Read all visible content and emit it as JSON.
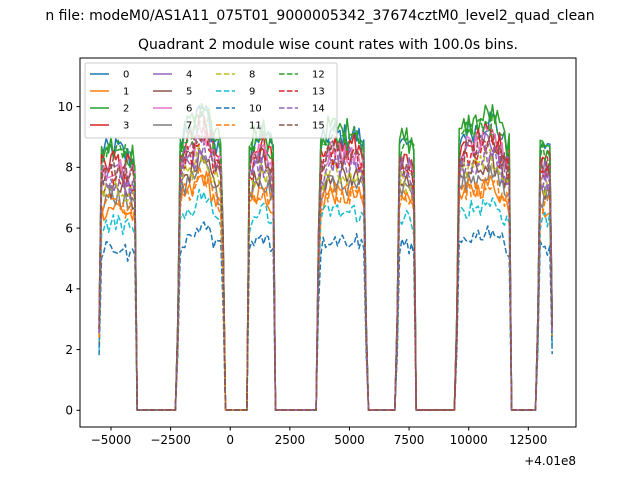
{
  "chart_data": {
    "type": "line",
    "suptitle": "n file: modeM0/AS1A11_075T01_9000005342_37674cztM0_level2_quad_clean",
    "title": "Quadrant 2 module wise count rates with 100.0s bins.",
    "xlabel": "",
    "ylabel": "",
    "x_offset_label": "+4.01e8",
    "xlim": [
      -6300,
      14500
    ],
    "ylim": [
      -0.55,
      11.6
    ],
    "x_ticks": [
      -5000,
      -2500,
      0,
      2500,
      5000,
      7500,
      10000,
      12500
    ],
    "x_tick_labels": [
      "−5000",
      "−2500",
      "0",
      "2500",
      "5000",
      "7500",
      "10000",
      "12500"
    ],
    "y_ticks": [
      0,
      2,
      4,
      6,
      8,
      10
    ],
    "y_tick_labels": [
      "0",
      "2",
      "4",
      "6",
      "8",
      "10"
    ],
    "grid": false,
    "legend_placement": "top-left",
    "legend_columns": 4,
    "bin_size_s": 100,
    "on_segments": [
      [
        -5500,
        -3950
      ],
      [
        -2200,
        -280
      ],
      [
        730,
        1880
      ],
      [
        3680,
        5700
      ],
      [
        7000,
        7780
      ],
      [
        9500,
        11780
      ],
      [
        12900,
        13500
      ]
    ],
    "series_level_scale": [
      1.0,
      0.78,
      1.02,
      0.96,
      0.92,
      0.85,
      0.94,
      0.82,
      0.86,
      0.72,
      0.62,
      0.79,
      0.99,
      0.91,
      0.88,
      0.93
    ],
    "series": [
      {
        "name": "0",
        "color": "#1f77b4",
        "dash": "solid"
      },
      {
        "name": "1",
        "color": "#ff7f0e",
        "dash": "solid"
      },
      {
        "name": "2",
        "color": "#2ca02c",
        "dash": "solid"
      },
      {
        "name": "3",
        "color": "#d62728",
        "dash": "solid"
      },
      {
        "name": "4",
        "color": "#9467bd",
        "dash": "solid"
      },
      {
        "name": "5",
        "color": "#8c564b",
        "dash": "solid"
      },
      {
        "name": "6",
        "color": "#e377c2",
        "dash": "solid"
      },
      {
        "name": "7",
        "color": "#7f7f7f",
        "dash": "solid"
      },
      {
        "name": "8",
        "color": "#bcbd22",
        "dash": "dashed"
      },
      {
        "name": "9",
        "color": "#17becf",
        "dash": "dashed"
      },
      {
        "name": "10",
        "color": "#1f77b4",
        "dash": "dashed"
      },
      {
        "name": "11",
        "color": "#ff7f0e",
        "dash": "dashed"
      },
      {
        "name": "12",
        "color": "#2ca02c",
        "dash": "dashed"
      },
      {
        "name": "13",
        "color": "#d62728",
        "dash": "dashed"
      },
      {
        "name": "14",
        "color": "#9467bd",
        "dash": "dashed"
      },
      {
        "name": "15",
        "color": "#8c564b",
        "dash": "dashed"
      }
    ]
  }
}
